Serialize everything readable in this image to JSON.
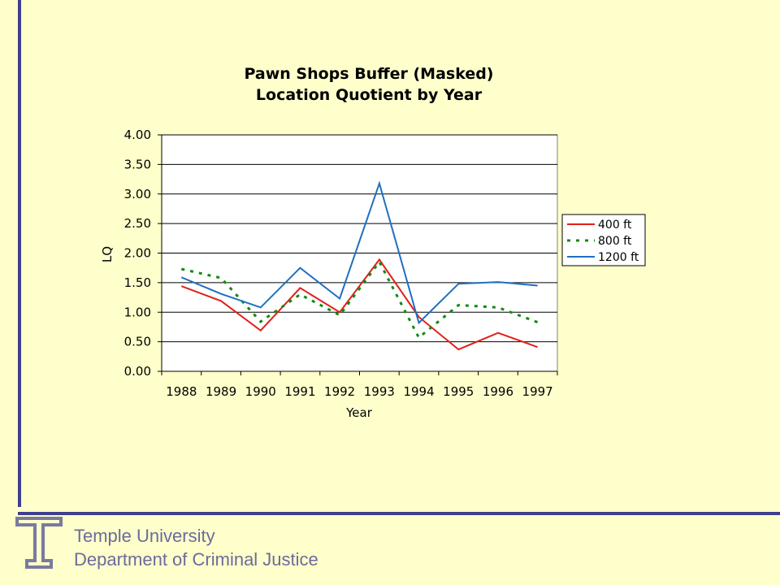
{
  "footer": {
    "line1": "Temple University",
    "line2": "Department of Criminal Justice"
  },
  "colors": {
    "background": "#FFFFCC",
    "accent_bar": "#3F3F8F",
    "footer_text": "#6B6B9B"
  },
  "icons": {
    "logo": "temple-t-logo"
  },
  "chart_data": {
    "type": "line",
    "title": [
      "Pawn Shops Buffer (Masked)",
      "Location Quotient by Year"
    ],
    "xlabel": "Year",
    "ylabel": "LQ",
    "categories": [
      "1988",
      "1989",
      "1990",
      "1991",
      "1992",
      "1993",
      "1994",
      "1995",
      "1996",
      "1997"
    ],
    "ylim": [
      0,
      4
    ],
    "yticks": [
      "0.00",
      "0.50",
      "1.00",
      "1.50",
      "2.00",
      "2.50",
      "3.00",
      "3.50",
      "4.00"
    ],
    "grid": true,
    "legend_position": "right",
    "series": [
      {
        "name": "400 ft",
        "color": "#E0201B",
        "dash": "solid",
        "values": [
          1.44,
          1.19,
          0.69,
          1.41,
          1.0,
          1.89,
          0.92,
          0.37,
          0.65,
          0.41
        ]
      },
      {
        "name": "800 ft",
        "color": "#138A13",
        "dash": "dotted",
        "values": [
          1.73,
          1.58,
          0.84,
          1.3,
          0.95,
          1.85,
          0.57,
          1.12,
          1.08,
          0.83
        ]
      },
      {
        "name": "1200 ft",
        "color": "#1F6FC2",
        "dash": "solid",
        "values": [
          1.59,
          1.31,
          1.08,
          1.75,
          1.23,
          3.18,
          0.82,
          1.48,
          1.51,
          1.45
        ]
      }
    ]
  }
}
